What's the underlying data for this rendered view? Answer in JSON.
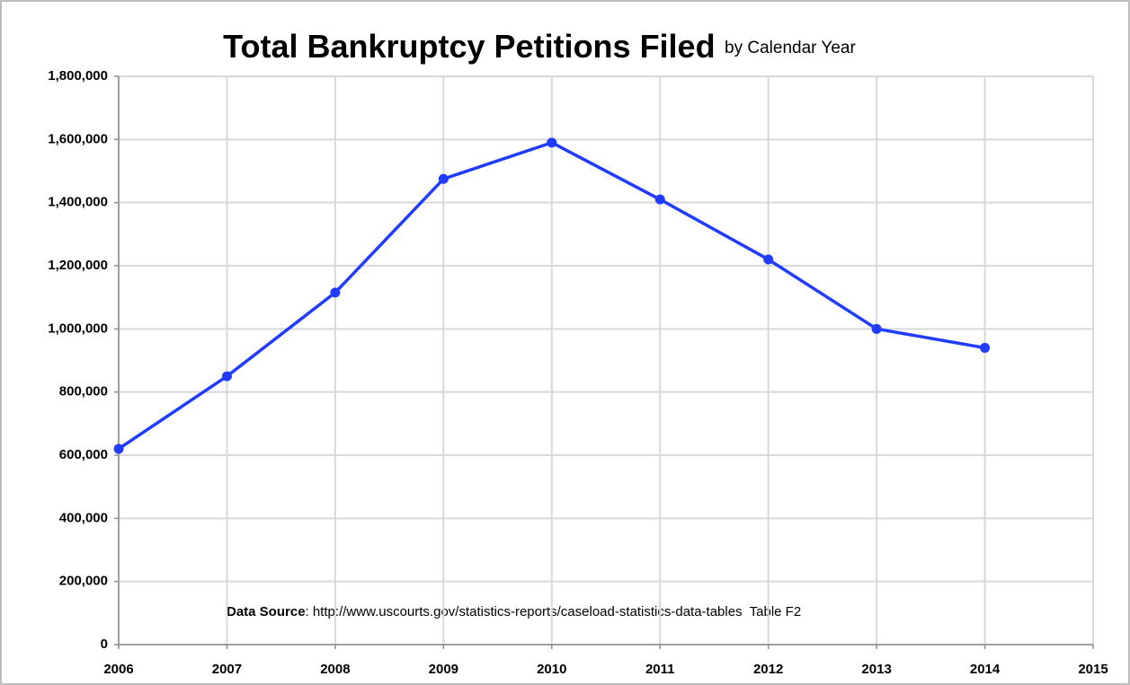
{
  "chart_data": {
    "type": "line",
    "title": "Total Bankruptcy Petitions Filed",
    "subtitle": "by Calendar Year",
    "annotation_label": "Data Source",
    "annotation": ": http://www.uscourts.gov/statistics-reports/caseload-statistics-data-tables  Table F2",
    "x": [
      2006,
      2007,
      2008,
      2009,
      2010,
      2011,
      2012,
      2013,
      2014
    ],
    "series": [
      {
        "name": "Total Bankruptcy Petitions Filed",
        "color": "#1f3cff",
        "values": [
          620000,
          850000,
          1115000,
          1475000,
          1590000,
          1410000,
          1220000,
          1000000,
          940000
        ]
      }
    ],
    "xlim": [
      2006,
      2015
    ],
    "xticks": [
      2006,
      2007,
      2008,
      2009,
      2010,
      2011,
      2012,
      2013,
      2014,
      2015
    ],
    "ylim": [
      0,
      1800000
    ],
    "yticks": [
      0,
      {
        "value": 200000,
        "label": "200,000"
      },
      {
        "value": 400000,
        "label": "400,000"
      },
      {
        "value": 600000,
        "label": "600,000"
      },
      {
        "value": 800000,
        "label": "800,000"
      },
      {
        "value": 1000000,
        "label": "1,000,000"
      },
      {
        "value": 1200000,
        "label": "1,200,000"
      },
      {
        "value": 1400000,
        "label": "1,400,000"
      },
      {
        "value": 1600000,
        "label": "1,600,000"
      },
      {
        "value": 1800000,
        "label": "1,800,000"
      }
    ],
    "grid": true
  }
}
